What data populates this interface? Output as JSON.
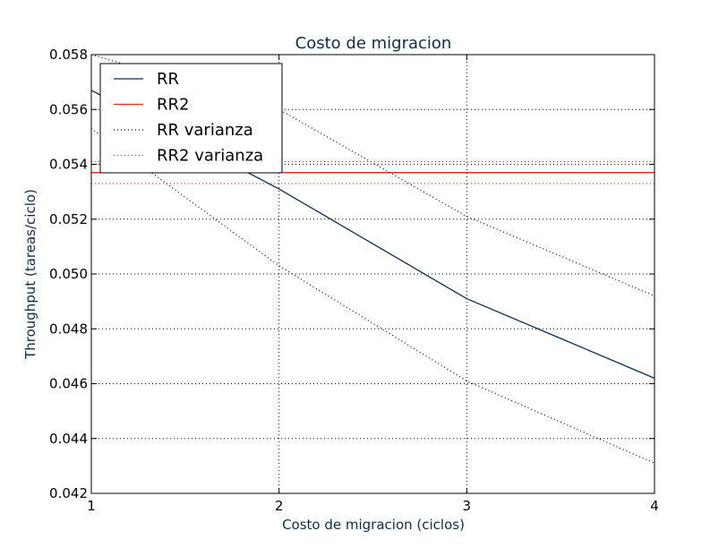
{
  "chart_data": {
    "type": "line",
    "title": "Costo de migracion",
    "xlabel": "Costo de migracion (ciclos)",
    "ylabel": "Throughput (tareas/ciclo)",
    "xlim": [
      1,
      4
    ],
    "ylim": [
      0.042,
      0.058
    ],
    "xticks": [
      1,
      2,
      3,
      4
    ],
    "xtick_labels": [
      "1",
      "2",
      "3",
      "4"
    ],
    "yticks": [
      0.042,
      0.044,
      0.046,
      0.048,
      0.05,
      0.052,
      0.054,
      0.056,
      0.058
    ],
    "ytick_labels": [
      "0.042",
      "0.044",
      "0.046",
      "0.048",
      "0.050",
      "0.052",
      "0.054",
      "0.056",
      "0.058"
    ],
    "grid": true,
    "legend_position": "top-left",
    "x": [
      1,
      2,
      3,
      4
    ],
    "series": [
      {
        "name": "RR",
        "style": "solid",
        "color": "#0b2d52",
        "values": [
          0.0567,
          0.0531,
          0.0491,
          0.0462
        ]
      },
      {
        "name": "RR2",
        "style": "solid",
        "color": "#ee2222",
        "values": [
          0.0537,
          0.0537,
          0.0537,
          0.0537
        ]
      },
      {
        "name": "RR varianza",
        "style": "dotted",
        "color": "#000000",
        "upper": [
          0.058,
          0.056,
          0.0521,
          0.0492
        ],
        "lower": [
          0.0553,
          0.0503,
          0.0461,
          0.0431
        ]
      },
      {
        "name": "RR2 varianza",
        "style": "dotted",
        "color": "#ee2222",
        "upper": [
          0.0541,
          0.0541,
          0.0541,
          0.0541
        ],
        "lower": [
          0.0533,
          0.0533,
          0.0533,
          0.0533
        ]
      }
    ],
    "colors": {
      "title": "#0b2d52",
      "axis_label": "#0b2d52",
      "grid": "#000000",
      "frame": "#000000"
    }
  }
}
